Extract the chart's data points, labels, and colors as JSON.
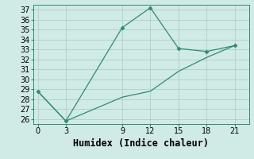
{
  "xlabel": "Humidex (Indice chaleur)",
  "x_ticks": [
    0,
    3,
    9,
    12,
    15,
    18,
    21
  ],
  "ylim": [
    25.5,
    37.5
  ],
  "yticks": [
    26,
    27,
    28,
    29,
    30,
    31,
    32,
    33,
    34,
    35,
    36,
    37
  ],
  "xlim": [
    -0.5,
    22.5
  ],
  "line1_x": [
    0,
    3,
    9,
    12,
    15,
    18,
    21
  ],
  "line1_y": [
    28.8,
    25.8,
    35.2,
    37.2,
    33.1,
    32.8,
    33.4
  ],
  "line2_x": [
    0,
    3,
    9,
    12,
    15,
    18,
    21
  ],
  "line2_y": [
    28.8,
    25.8,
    28.2,
    28.8,
    30.8,
    32.2,
    33.4
  ],
  "line_color": "#2e8b76",
  "bg_color": "#d0eae6",
  "grid_color": "#b0ceca",
  "tick_label_fontsize": 7,
  "xlabel_fontsize": 8.5
}
